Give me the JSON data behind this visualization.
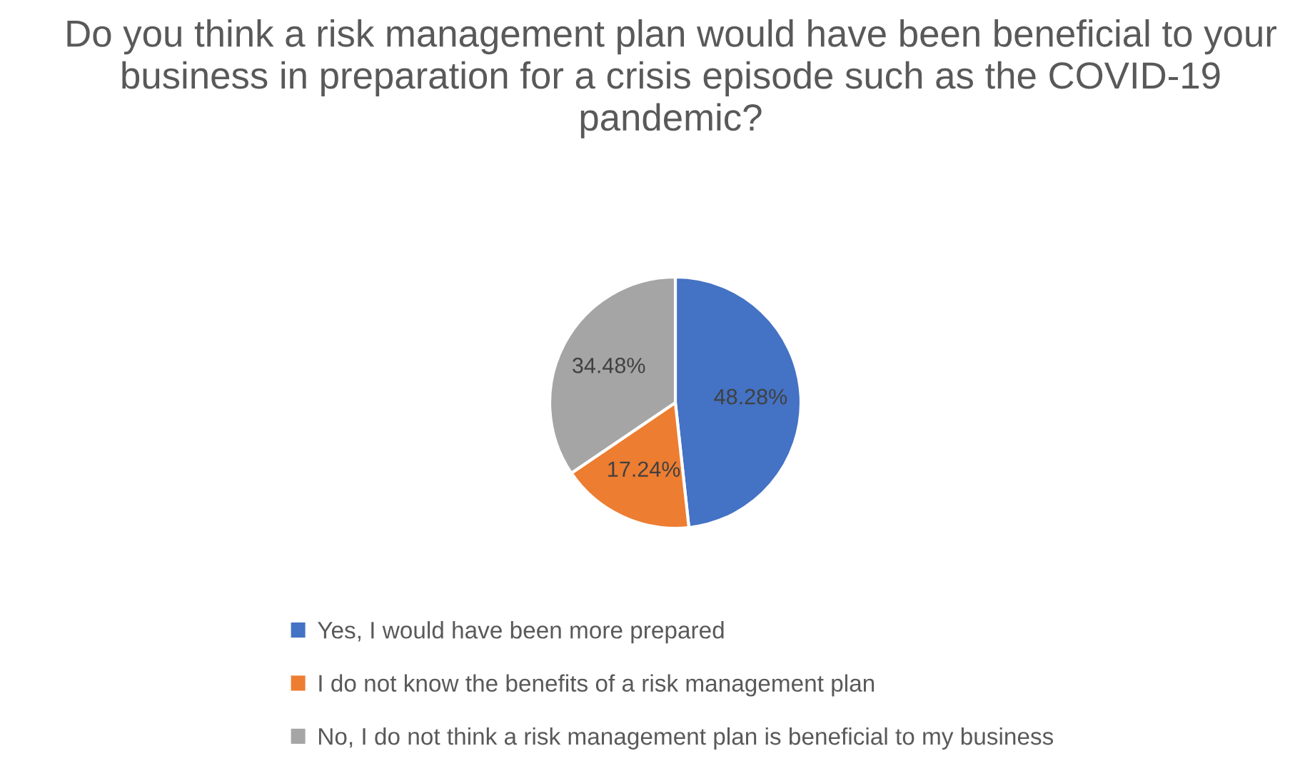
{
  "chart_data": {
    "type": "pie",
    "title": "Do you think a risk management plan would have been beneficial to your business in preparation for a crisis episode such as the COVID-19 pandemic?",
    "categories": [
      "Yes, I would have been more prepared",
      "I do not know the benefits of a risk management plan",
      "No, I do not think a risk management plan is beneficial to my business"
    ],
    "values": [
      48.28,
      17.24,
      34.48
    ],
    "colors": [
      "#4472c4",
      "#ed7d31",
      "#a5a5a5"
    ],
    "value_labels": [
      "48.28%",
      "17.24%",
      "34.48%"
    ],
    "legend": "bottom"
  }
}
